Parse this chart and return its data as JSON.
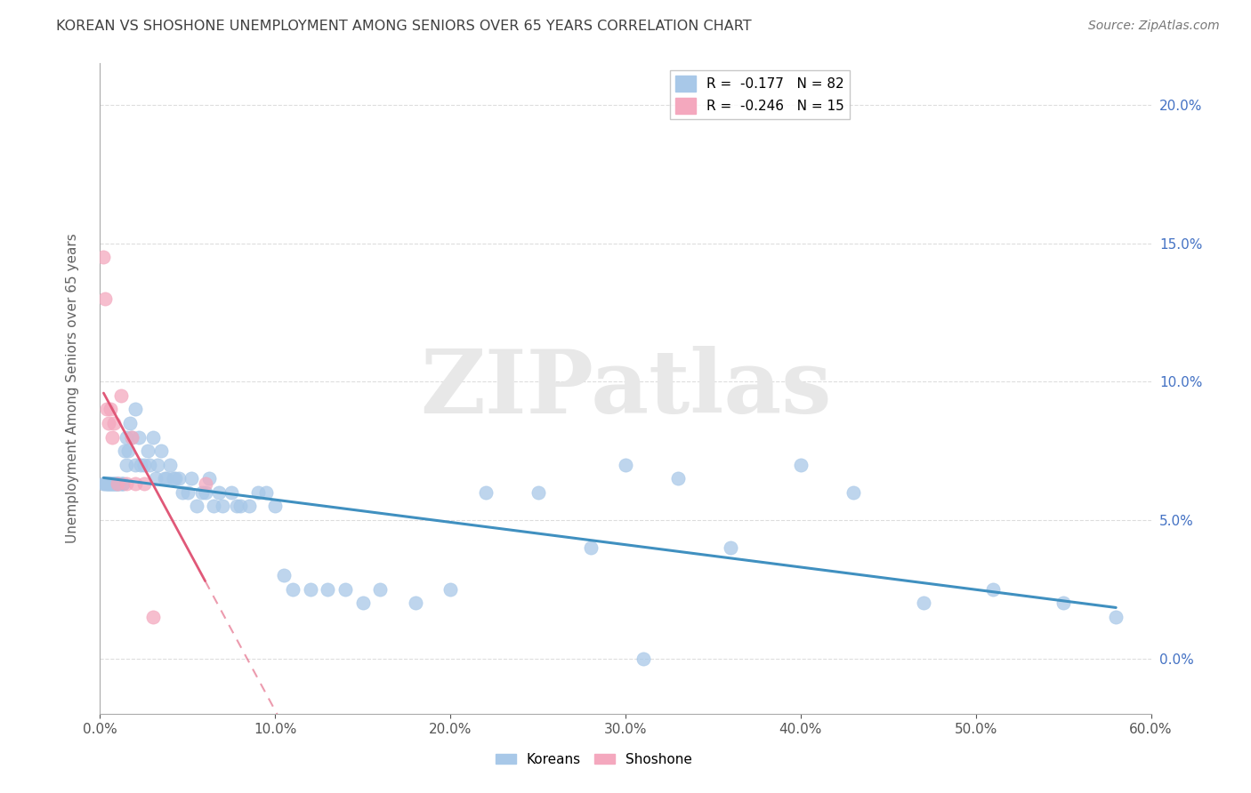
{
  "title": "KOREAN VS SHOSHONE UNEMPLOYMENT AMONG SENIORS OVER 65 YEARS CORRELATION CHART",
  "source": "Source: ZipAtlas.com",
  "ylabel": "Unemployment Among Seniors over 65 years",
  "xlim": [
    0.0,
    0.6
  ],
  "ylim": [
    -0.02,
    0.215
  ],
  "xtick_vals": [
    0.0,
    0.1,
    0.2,
    0.3,
    0.4,
    0.5,
    0.6
  ],
  "ytick_vals": [
    0.0,
    0.05,
    0.1,
    0.15,
    0.2
  ],
  "korean_R": -0.177,
  "korean_N": 82,
  "shoshone_R": -0.246,
  "shoshone_N": 15,
  "korean_color": "#a8c8e8",
  "shoshone_color": "#f4a8be",
  "korean_line_color": "#4090c0",
  "shoshone_line_color": "#e05878",
  "watermark_color": "#e8e8e8",
  "grid_color": "#dddddd",
  "right_tick_color": "#4472c4",
  "title_color": "#404040",
  "ylabel_color": "#606060",
  "korean_x": [
    0.002,
    0.003,
    0.004,
    0.004,
    0.005,
    0.005,
    0.006,
    0.006,
    0.007,
    0.007,
    0.008,
    0.008,
    0.009,
    0.009,
    0.01,
    0.01,
    0.011,
    0.012,
    0.013,
    0.013,
    0.014,
    0.015,
    0.015,
    0.016,
    0.017,
    0.018,
    0.02,
    0.02,
    0.022,
    0.023,
    0.025,
    0.027,
    0.028,
    0.03,
    0.032,
    0.033,
    0.035,
    0.037,
    0.038,
    0.04,
    0.042,
    0.043,
    0.045,
    0.047,
    0.05,
    0.052,
    0.055,
    0.058,
    0.06,
    0.062,
    0.065,
    0.068,
    0.07,
    0.075,
    0.078,
    0.08,
    0.085,
    0.09,
    0.095,
    0.1,
    0.105,
    0.11,
    0.12,
    0.13,
    0.14,
    0.15,
    0.16,
    0.18,
    0.2,
    0.22,
    0.25,
    0.28,
    0.3,
    0.33,
    0.36,
    0.4,
    0.43,
    0.47,
    0.51,
    0.55,
    0.31,
    0.58
  ],
  "korean_y": [
    0.063,
    0.063,
    0.063,
    0.063,
    0.063,
    0.063,
    0.063,
    0.063,
    0.063,
    0.063,
    0.063,
    0.063,
    0.063,
    0.063,
    0.063,
    0.063,
    0.063,
    0.063,
    0.063,
    0.063,
    0.075,
    0.07,
    0.08,
    0.075,
    0.085,
    0.08,
    0.09,
    0.07,
    0.08,
    0.07,
    0.07,
    0.075,
    0.07,
    0.08,
    0.065,
    0.07,
    0.075,
    0.065,
    0.065,
    0.07,
    0.065,
    0.065,
    0.065,
    0.06,
    0.06,
    0.065,
    0.055,
    0.06,
    0.06,
    0.065,
    0.055,
    0.06,
    0.055,
    0.06,
    0.055,
    0.055,
    0.055,
    0.06,
    0.06,
    0.055,
    0.03,
    0.025,
    0.025,
    0.025,
    0.025,
    0.02,
    0.025,
    0.02,
    0.025,
    0.06,
    0.06,
    0.04,
    0.07,
    0.065,
    0.04,
    0.07,
    0.06,
    0.02,
    0.025,
    0.02,
    0.0,
    0.015
  ],
  "shoshone_x": [
    0.002,
    0.003,
    0.004,
    0.005,
    0.006,
    0.007,
    0.008,
    0.01,
    0.012,
    0.015,
    0.018,
    0.02,
    0.025,
    0.03,
    0.06
  ],
  "shoshone_y": [
    0.145,
    0.13,
    0.09,
    0.085,
    0.09,
    0.08,
    0.085,
    0.063,
    0.095,
    0.063,
    0.08,
    0.063,
    0.063,
    0.015,
    0.063
  ]
}
